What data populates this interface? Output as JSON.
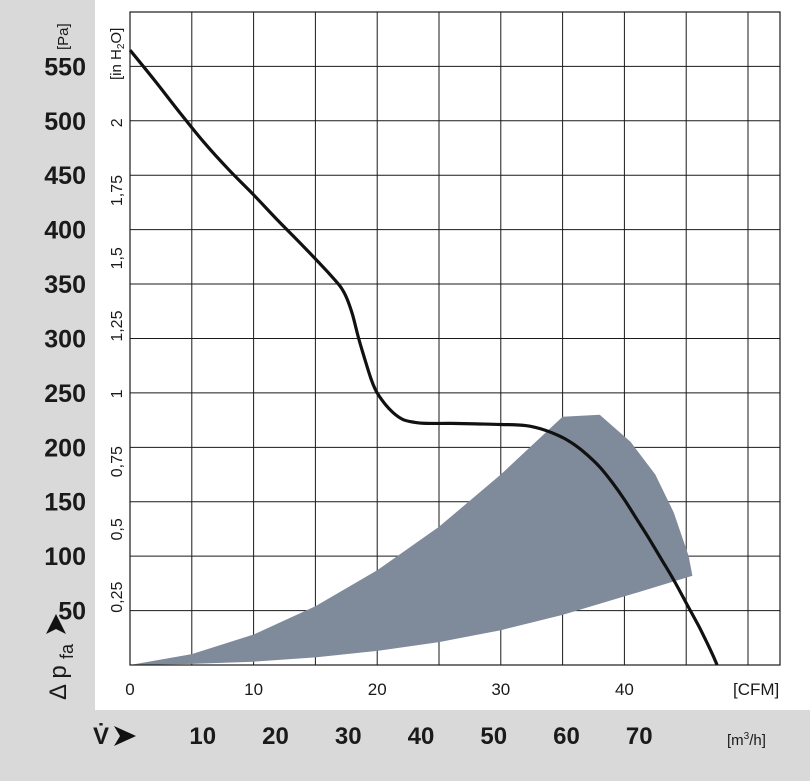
{
  "chart_data": {
    "type": "line",
    "title": "",
    "x_primary": {
      "unit": "[CFM]",
      "range": [
        0,
        48
      ],
      "ticks": [
        0,
        10,
        20,
        30,
        40
      ]
    },
    "x_secondary": {
      "symbol": "V̇",
      "unit": "[m³/h]",
      "ticks": [
        10,
        20,
        30,
        40,
        50,
        60,
        70
      ]
    },
    "y_primary": {
      "symbol": "Δ pfa",
      "symbol_main": "Δ p",
      "symbol_sub": "fa",
      "unit": "[Pa]",
      "range": [
        0,
        575
      ],
      "ticks": [
        50,
        100,
        150,
        200,
        250,
        300,
        350,
        400,
        450,
        500,
        550
      ]
    },
    "y_secondary": {
      "unit": "[in H₂O]",
      "unit_main": "[in H",
      "unit_sub": "2",
      "unit_end": "O]",
      "ticks": [
        "0,25",
        "0,5",
        "0,75",
        "1",
        "1,25",
        "1,5",
        "1,75",
        "2"
      ],
      "tick_values": [
        0.25,
        0.5,
        0.75,
        1,
        1.25,
        1.5,
        1.75,
        2
      ]
    },
    "grid": true,
    "series": [
      {
        "values": [
          [
            0,
            565
          ],
          [
            2,
            537
          ],
          [
            4,
            508
          ],
          [
            6,
            480
          ],
          [
            8,
            455
          ],
          [
            10,
            432
          ],
          [
            12,
            408
          ],
          [
            14,
            385
          ],
          [
            16,
            361
          ],
          [
            17,
            348
          ],
          [
            17.5,
            338
          ],
          [
            18,
            322
          ],
          [
            18.5,
            300
          ],
          [
            19,
            281
          ],
          [
            19.5,
            263
          ],
          [
            20,
            250
          ],
          [
            21,
            235
          ],
          [
            22,
            226
          ],
          [
            23,
            223
          ],
          [
            24,
            222
          ],
          [
            26,
            222
          ],
          [
            28,
            221.5
          ],
          [
            30,
            221
          ],
          [
            32,
            220
          ],
          [
            33.5,
            216
          ],
          [
            35,
            209
          ],
          [
            36,
            202
          ],
          [
            37,
            193
          ],
          [
            38,
            182
          ],
          [
            39,
            168
          ],
          [
            40,
            152
          ],
          [
            41,
            134
          ],
          [
            42,
            116
          ],
          [
            43,
            97
          ],
          [
            44,
            78
          ],
          [
            45,
            57
          ],
          [
            46,
            36
          ],
          [
            47,
            13
          ],
          [
            47.5,
            0
          ]
        ]
      }
    ],
    "operating_area": {
      "color": "#7f8b9b",
      "upper": [
        [
          0,
          0
        ],
        [
          5,
          10
        ],
        [
          10,
          28
        ],
        [
          15,
          54
        ],
        [
          20,
          87
        ],
        [
          25,
          127
        ],
        [
          30,
          175
        ],
        [
          35,
          228
        ],
        [
          38,
          230
        ]
      ],
      "right": [
        [
          38,
          230
        ],
        [
          40.5,
          205
        ],
        [
          42.5,
          175
        ],
        [
          44,
          140
        ],
        [
          45.2,
          100
        ],
        [
          45.5,
          82
        ]
      ],
      "lower": [
        [
          45.5,
          82
        ],
        [
          40,
          63
        ],
        [
          35,
          46
        ],
        [
          30,
          32
        ],
        [
          25,
          21
        ],
        [
          20,
          13
        ],
        [
          15,
          7
        ],
        [
          10,
          3
        ],
        [
          5,
          1
        ],
        [
          0,
          0
        ]
      ]
    },
    "colors": {
      "panel": "#d9d9d9",
      "curve": "#111111",
      "grid": "#1a1a1a"
    }
  }
}
